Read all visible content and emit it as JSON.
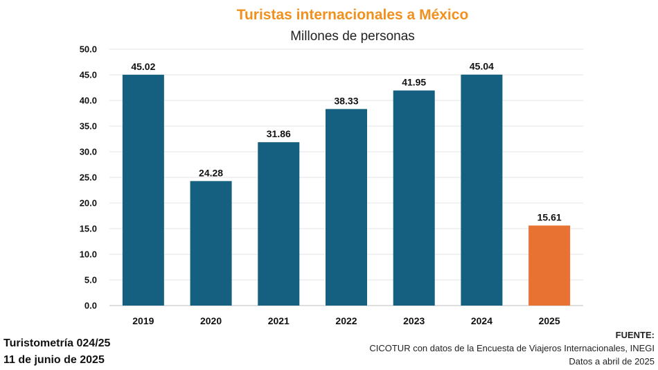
{
  "chart_data": {
    "type": "bar",
    "title": "Turistas internacionales a México",
    "subtitle": "Millones de personas",
    "categories": [
      "2019",
      "2020",
      "2021",
      "2022",
      "2023",
      "2024",
      "2025"
    ],
    "values": [
      45.02,
      24.28,
      31.86,
      38.33,
      41.95,
      45.04,
      15.61
    ],
    "data_labels": [
      "45.02",
      "24.28",
      "31.86",
      "38.33",
      "41.95",
      "45.04",
      "15.61"
    ],
    "bar_colors": [
      "#155f80",
      "#155f80",
      "#155f80",
      "#155f80",
      "#155f80",
      "#155f80",
      "#e87232"
    ],
    "ylim": [
      0,
      50
    ],
    "yticks": [
      "0.0",
      "5.0",
      "10.0",
      "15.0",
      "20.0",
      "25.0",
      "30.0",
      "35.0",
      "40.0",
      "45.0",
      "50.0"
    ],
    "xlabel": "",
    "ylabel": "",
    "grid": true,
    "legend": "none"
  },
  "colors": {
    "title": "#f0901e",
    "bar_primary": "#155f80",
    "bar_highlight": "#e87232"
  },
  "footer": {
    "left_line1": "Turistometría 024/25",
    "left_line2": "11 de junio de 2025",
    "source_heading": "FUENTE:",
    "source_line1": "CICOTUR con datos de la Encuesta de Viajeros Internacionales, INEGI",
    "source_line2": "Datos a abril de 2025"
  }
}
